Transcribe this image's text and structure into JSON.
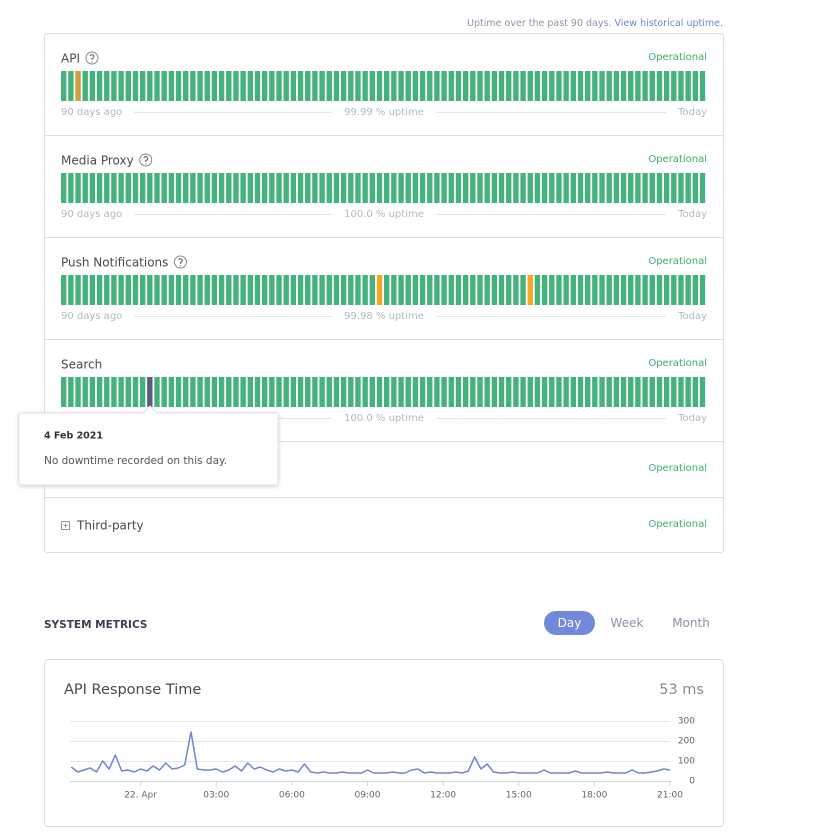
{
  "header": {
    "note": "Uptime over the past 90 days.",
    "link": "View historical uptime."
  },
  "components": [
    {
      "name": "API",
      "status": "Operational",
      "start": "90 days ago",
      "uptime": "99.99 % uptime",
      "end": "Today"
    },
    {
      "name": "Media Proxy",
      "status": "Operational",
      "start": "90 days ago",
      "uptime": "100.0 % uptime",
      "end": "Today"
    },
    {
      "name": "Push Notifications",
      "status": "Operational",
      "start": "90 days ago",
      "uptime": "99.98 % uptime",
      "end": "Today"
    },
    {
      "name": "Search",
      "status": "Operational",
      "uptime": "100.0 % uptime",
      "end": "Today"
    },
    {
      "status": "Operational"
    },
    {
      "name": "Third-party",
      "status": "Operational"
    }
  ],
  "tooltip": {
    "date": "4 Feb 2021",
    "message": "No downtime recorded on this day."
  },
  "metrics": {
    "title": "SYSTEM METRICS",
    "periods": [
      "Day",
      "Week",
      "Month"
    ]
  },
  "chart_data": {
    "type": "line",
    "title": "API Response Time",
    "current": "53 ms",
    "x": [
      -2.75,
      -2.5,
      -2.25,
      -2,
      -1.75,
      -1.5,
      -1.25,
      -1,
      -0.75,
      -0.5,
      -0.25,
      0,
      0.25,
      0.5,
      0.75,
      1,
      1.25,
      1.5,
      1.75,
      2,
      2.25,
      2.5,
      2.75,
      3,
      3.25,
      3.5,
      3.75,
      4,
      4.25,
      4.5,
      4.75,
      5,
      5.25,
      5.5,
      5.75,
      6,
      6.25,
      6.5,
      6.75,
      7,
      7.25,
      7.5,
      7.75,
      8,
      8.25,
      8.5,
      8.75,
      9,
      9.25,
      9.5,
      9.75,
      10,
      10.25,
      10.5,
      10.75,
      11,
      11.25,
      11.5,
      11.75,
      12,
      12.25,
      12.5,
      12.75,
      13,
      13.25,
      13.5,
      13.75,
      14,
      14.25,
      14.5,
      14.75,
      15,
      15.25,
      15.5,
      15.75,
      16,
      16.25,
      16.5,
      16.75,
      17,
      17.25,
      17.5,
      17.75,
      18,
      18.25,
      18.5,
      18.75,
      19,
      19.25,
      19.5,
      19.75,
      20,
      20.25,
      20.5,
      20.75,
      21
    ],
    "series": [
      {
        "color": "#6f85d6",
        "values": [
          70,
          45,
          55,
          65,
          45,
          100,
          60,
          130,
          50,
          55,
          45,
          60,
          50,
          75,
          55,
          90,
          60,
          65,
          80,
          245,
          60,
          55,
          55,
          60,
          45,
          55,
          75,
          50,
          90,
          60,
          70,
          55,
          45,
          60,
          50,
          55,
          45,
          85,
          45,
          40,
          45,
          40,
          40,
          45,
          40,
          40,
          40,
          55,
          40,
          40,
          40,
          45,
          40,
          40,
          55,
          60,
          40,
          45,
          40,
          40,
          40,
          45,
          40,
          50,
          120,
          60,
          85,
          45,
          40,
          40,
          45,
          40,
          40,
          40,
          40,
          55,
          40,
          40,
          40,
          40,
          50,
          40,
          40,
          40,
          40,
          45,
          40,
          40,
          40,
          55,
          40,
          40,
          45,
          50,
          60,
          55
        ]
      }
    ],
    "xlim": [
      -2.8,
      21
    ],
    "xticks": [
      {
        "value": 0,
        "label": "22. Apr"
      },
      {
        "value": 3,
        "label": "03:00"
      },
      {
        "value": 6,
        "label": "06:00"
      },
      {
        "value": 9,
        "label": "09:00"
      },
      {
        "value": 12,
        "label": "12:00"
      },
      {
        "value": 15,
        "label": "15:00"
      },
      {
        "value": 18,
        "label": "18:00"
      },
      {
        "value": 21,
        "label": "21:00"
      }
    ],
    "ylim": [
      0,
      300
    ],
    "yticks": [
      0,
      100,
      200,
      300
    ],
    "grid": true
  }
}
